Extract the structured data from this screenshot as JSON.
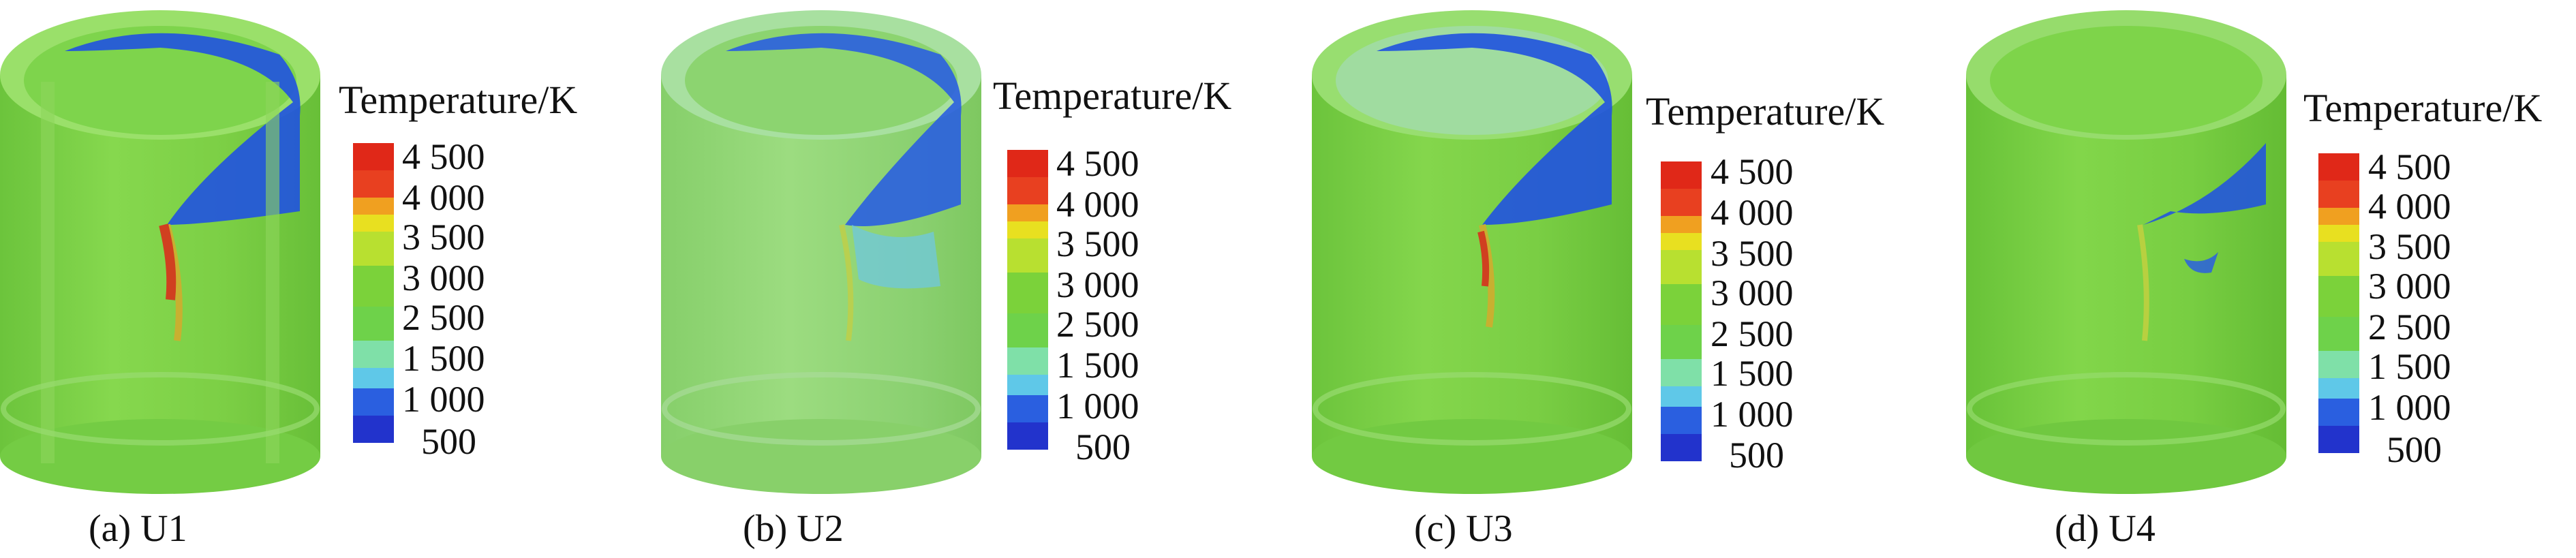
{
  "legend": {
    "title": "Temperature/K",
    "ticks": [
      "4 500",
      "4 000",
      "3 500",
      "3 000",
      "2 500",
      "1 500",
      "1 000",
      "500"
    ],
    "colors": [
      "#2233cc",
      "#2a5fe0",
      "#5fc8e8",
      "#7fe0a8",
      "#6ed24a",
      "#7bd23a",
      "#b8e030",
      "#e8e020",
      "#f0a020",
      "#e84020",
      "#e02818"
    ]
  },
  "panels": [
    {
      "id": "U1",
      "caption": "(a) U1"
    },
    {
      "id": "U2",
      "caption": "(b) U2"
    },
    {
      "id": "U3",
      "caption": "(c) U3"
    },
    {
      "id": "U4",
      "caption": "(d) U4"
    }
  ],
  "colors": {
    "body_green": "#7cd24a",
    "rim_green": "#9ae06a",
    "pale_green": "#a8e0a0",
    "blue_band": "#2255dd",
    "hot_red": "#e04020"
  }
}
